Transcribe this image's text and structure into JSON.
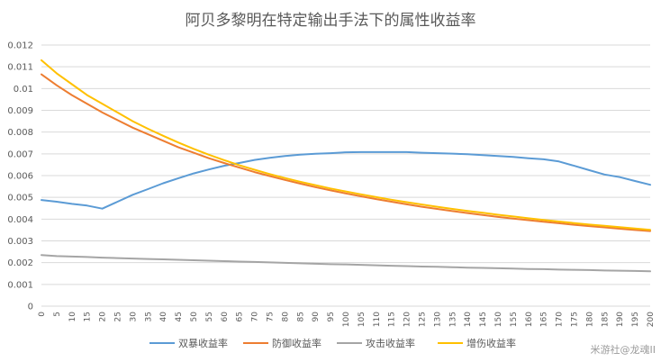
{
  "chart_data": {
    "type": "line",
    "title": "阿贝多黎明在特定输出手法下的属性收益率",
    "xlabel": "",
    "ylabel": "",
    "xlim": [
      0,
      200
    ],
    "ylim": [
      0,
      0.012
    ],
    "grid": true,
    "legend_position": "bottom",
    "y_ticks": [
      "0",
      "0.001",
      "0.002",
      "0.003",
      "0.004",
      "0.005",
      "0.006",
      "0.007",
      "0.008",
      "0.009",
      "0.01",
      "0.011",
      "0.012"
    ],
    "x": [
      0,
      5,
      10,
      15,
      20,
      25,
      30,
      35,
      40,
      45,
      50,
      55,
      60,
      65,
      70,
      75,
      80,
      85,
      90,
      95,
      100,
      105,
      110,
      115,
      120,
      125,
      130,
      135,
      140,
      145,
      150,
      155,
      160,
      165,
      170,
      175,
      180,
      185,
      190,
      195,
      200
    ],
    "series": [
      {
        "name": "双暴收益率",
        "color": "#5b9bd5",
        "values": [
          0.00488,
          0.0048,
          0.0047,
          0.00462,
          0.00448,
          0.0048,
          0.00512,
          0.00538,
          0.00565,
          0.00588,
          0.0061,
          0.00628,
          0.00645,
          0.00658,
          0.00672,
          0.00682,
          0.0069,
          0.00696,
          0.007,
          0.00703,
          0.00707,
          0.00708,
          0.00708,
          0.00708,
          0.00708,
          0.00705,
          0.00703,
          0.00701,
          0.00698,
          0.00694,
          0.0069,
          0.00686,
          0.0068,
          0.00675,
          0.00665,
          0.00645,
          0.00625,
          0.00605,
          0.00593,
          0.00575,
          0.00558
        ]
      },
      {
        "name": "防御收益率",
        "color": "#ed7d31",
        "values": [
          0.01065,
          0.01015,
          0.0097,
          0.0093,
          0.0089,
          0.00855,
          0.0082,
          0.0079,
          0.0076,
          0.0073,
          0.00705,
          0.0068,
          0.00658,
          0.00637,
          0.00616,
          0.00598,
          0.0058,
          0.00563,
          0.00547,
          0.00532,
          0.00518,
          0.00505,
          0.00492,
          0.0048,
          0.00468,
          0.00457,
          0.00447,
          0.00437,
          0.00428,
          0.00419,
          0.0041,
          0.00402,
          0.00395,
          0.00388,
          0.00381,
          0.00374,
          0.00368,
          0.00362,
          0.00356,
          0.0035,
          0.00345
        ]
      },
      {
        "name": "攻击收益率",
        "color": "#a5a5a5",
        "values": [
          0.00235,
          0.0023,
          0.00228,
          0.00226,
          0.00223,
          0.00221,
          0.00219,
          0.00217,
          0.00215,
          0.00213,
          0.00211,
          0.00209,
          0.00207,
          0.00205,
          0.00203,
          0.00201,
          0.00199,
          0.00197,
          0.00195,
          0.00193,
          0.00192,
          0.0019,
          0.00188,
          0.00186,
          0.00184,
          0.00182,
          0.00181,
          0.00179,
          0.00177,
          0.00176,
          0.00174,
          0.00173,
          0.00171,
          0.0017,
          0.00168,
          0.00167,
          0.00166,
          0.00164,
          0.00163,
          0.00162,
          0.0016
        ]
      },
      {
        "name": "增伤收益率",
        "color": "#ffc000",
        "values": [
          0.0113,
          0.0107,
          0.0102,
          0.0097,
          0.0093,
          0.0089,
          0.0085,
          0.00815,
          0.00783,
          0.00752,
          0.00723,
          0.00696,
          0.00671,
          0.00648,
          0.00627,
          0.00607,
          0.00589,
          0.00572,
          0.00556,
          0.00541,
          0.00527,
          0.00514,
          0.00501,
          0.00489,
          0.00478,
          0.00467,
          0.00457,
          0.00447,
          0.00438,
          0.00429,
          0.0042,
          0.00412,
          0.00404,
          0.00396,
          0.00389,
          0.00382,
          0.00375,
          0.00369,
          0.00363,
          0.00357,
          0.00351
        ]
      }
    ]
  },
  "watermark": "米游社@龙魂II"
}
